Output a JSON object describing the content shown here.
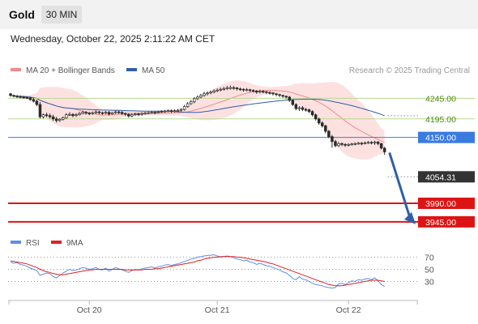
{
  "header": {
    "title": "Gold",
    "timeframe": "30 MIN",
    "datetime": "Wednesday, October 22, 2025 2:11:22 AM CET"
  },
  "legend": {
    "bb_label": "MA 20 + Bollinger Bands",
    "ma50_label": "MA 50",
    "credit": "Research © 2025 Trading Central",
    "rsi_label": "RSI",
    "rsi9_label": "9MA"
  },
  "colors": {
    "bb_band": "#fcd9d9",
    "ma20": "#f08a8a",
    "ma50": "#2f5fa8",
    "level_green": "#b9d98f",
    "level_blue": "#3a7be0",
    "level_red": "#dd1414",
    "current": "#333333",
    "rsi": "#5b8fe8",
    "rsi9": "#e02020",
    "arrow": "#2f5fa8",
    "candle": "#2b2b2b"
  },
  "chart_data": [
    {
      "type": "candlestick",
      "title": "Gold",
      "timeframe": "30 MIN",
      "ylim": [
        3927,
        4291
      ],
      "x_ticks": [
        {
          "label": "Oct 20",
          "index": 24
        },
        {
          "label": "Oct 21",
          "index": 63
        },
        {
          "label": "Oct 22",
          "index": 103
        }
      ],
      "close": [
        4252,
        4250,
        4249,
        4248,
        4247,
        4246,
        4242,
        4238,
        4230,
        4200,
        4205,
        4203,
        4200,
        4195,
        4191,
        4194,
        4198,
        4205,
        4206,
        4203,
        4205,
        4208,
        4211,
        4209,
        4208,
        4210,
        4212,
        4210,
        4209,
        4211,
        4207,
        4210,
        4212,
        4211,
        4208,
        4206,
        4202,
        4205,
        4207,
        4206,
        4208,
        4209,
        4210,
        4211,
        4210,
        4212,
        4213,
        4214,
        4215,
        4213,
        4215,
        4216,
        4218,
        4225,
        4232,
        4237,
        4244,
        4248,
        4252,
        4256,
        4258,
        4260,
        4263,
        4265,
        4267,
        4268,
        4270,
        4271,
        4270,
        4268,
        4267,
        4265,
        4266,
        4264,
        4263,
        4260,
        4262,
        4261,
        4259,
        4258,
        4256,
        4254,
        4252,
        4250,
        4248,
        4240,
        4230,
        4220,
        4222,
        4218,
        4217,
        4213,
        4205,
        4195,
        4185,
        4178,
        4165,
        4152,
        4140,
        4130,
        4135,
        4133,
        4131,
        4133,
        4134,
        4135,
        4136,
        4135,
        4137,
        4138,
        4137,
        4139,
        4135,
        4124,
        4115
      ],
      "open": [
        4256,
        4252,
        4250,
        4249,
        4248,
        4247,
        4246,
        4242,
        4238,
        4230,
        4200,
        4205,
        4203,
        4200,
        4195,
        4191,
        4194,
        4198,
        4205,
        4206,
        4203,
        4205,
        4208,
        4211,
        4209,
        4208,
        4210,
        4212,
        4210,
        4209,
        4211,
        4207,
        4210,
        4212,
        4211,
        4208,
        4206,
        4202,
        4205,
        4207,
        4206,
        4208,
        4209,
        4210,
        4211,
        4210,
        4212,
        4213,
        4214,
        4215,
        4213,
        4215,
        4216,
        4218,
        4225,
        4232,
        4237,
        4244,
        4248,
        4252,
        4256,
        4258,
        4260,
        4263,
        4265,
        4267,
        4268,
        4270,
        4271,
        4270,
        4268,
        4267,
        4265,
        4266,
        4264,
        4263,
        4260,
        4262,
        4261,
        4259,
        4258,
        4256,
        4254,
        4252,
        4250,
        4248,
        4240,
        4230,
        4220,
        4222,
        4218,
        4217,
        4213,
        4205,
        4195,
        4185,
        4178,
        4165,
        4152,
        4140,
        4130,
        4135,
        4133,
        4131,
        4133,
        4134,
        4135,
        4136,
        4135,
        4137,
        4138,
        4137,
        4139,
        4135,
        4124
      ],
      "high": [
        4258,
        4254,
        4253,
        4252,
        4251,
        4250,
        4249,
        4246,
        4242,
        4236,
        4208,
        4210,
        4208,
        4205,
        4200,
        4197,
        4201,
        4209,
        4211,
        4209,
        4209,
        4212,
        4215,
        4214,
        4212,
        4213,
        4216,
        4215,
        4213,
        4214,
        4214,
        4212,
        4215,
        4215,
        4214,
        4211,
        4209,
        4208,
        4210,
        4210,
        4211,
        4212,
        4213,
        4214,
        4214,
        4215,
        4216,
        4217,
        4218,
        4218,
        4218,
        4219,
        4221,
        4229,
        4236,
        4241,
        4248,
        4252,
        4256,
        4261,
        4262,
        4264,
        4267,
        4269,
        4271,
        4273,
        4275,
        4276,
        4275,
        4273,
        4271,
        4269,
        4270,
        4268,
        4267,
        4265,
        4266,
        4265,
        4263,
        4262,
        4260,
        4258,
        4256,
        4254,
        4252,
        4251,
        4243,
        4233,
        4226,
        4226,
        4222,
        4220,
        4216,
        4208,
        4198,
        4189,
        4181,
        4168,
        4156,
        4144,
        4139,
        4138,
        4136,
        4136,
        4137,
        4138,
        4139,
        4139,
        4140,
        4141,
        4141,
        4142,
        4141,
        4137,
        4127
      ],
      "low": [
        4249,
        4247,
        4246,
        4245,
        4244,
        4243,
        4239,
        4235,
        4226,
        4196,
        4196,
        4199,
        4196,
        4190,
        4186,
        4188,
        4191,
        4195,
        4202,
        4199,
        4200,
        4203,
        4206,
        4205,
        4204,
        4205,
        4207,
        4206,
        4205,
        4206,
        4203,
        4205,
        4207,
        4207,
        4204,
        4202,
        4198,
        4199,
        4202,
        4202,
        4203,
        4205,
        4206,
        4207,
        4206,
        4208,
        4209,
        4210,
        4211,
        4209,
        4210,
        4212,
        4213,
        4215,
        4222,
        4229,
        4233,
        4241,
        4245,
        4249,
        4252,
        4255,
        4257,
        4260,
        4262,
        4264,
        4265,
        4266,
        4266,
        4264,
        4263,
        4261,
        4262,
        4260,
        4259,
        4256,
        4257,
        4257,
        4255,
        4254,
        4252,
        4250,
        4248,
        4246,
        4244,
        4236,
        4226,
        4216,
        4214,
        4214,
        4213,
        4209,
        4201,
        4191,
        4181,
        4174,
        4160,
        4148,
        4125,
        4126,
        4127,
        4129,
        4127,
        4128,
        4130,
        4131,
        4132,
        4131,
        4133,
        4134,
        4133,
        4132,
        4131,
        4121,
        4108
      ],
      "levels": [
        {
          "label": "4245.00",
          "value": 4245,
          "kind": "resistance"
        },
        {
          "label": "4195.00",
          "value": 4195,
          "kind": "resistance"
        },
        {
          "label": "4150.00",
          "value": 4150,
          "kind": "pivot"
        },
        {
          "label": "3990.00",
          "value": 3990,
          "kind": "support"
        },
        {
          "label": "3945.00",
          "value": 3945,
          "kind": "support"
        }
      ],
      "current": {
        "label": "4054.31",
        "value": 4054.31
      },
      "forecast_arrow": {
        "from_value": 4113,
        "to_value": 3945
      },
      "indicators": [
        "MA 20 + Bollinger Bands",
        "MA 50"
      ],
      "legend_position": "top-left"
    },
    {
      "type": "line",
      "panel": "RSI",
      "ylim": [
        0,
        80
      ],
      "y_ticks": [
        {
          "label": "70",
          "value": 70
        },
        {
          "label": "50",
          "value": 50
        },
        {
          "label": "30",
          "value": 30
        }
      ],
      "series": [
        {
          "name": "RSI",
          "values": [
            62,
            60,
            61,
            58,
            57,
            55,
            52,
            50,
            48,
            40,
            42,
            44,
            43,
            38,
            36,
            40,
            44,
            47,
            50,
            48,
            49,
            51,
            53,
            52,
            50,
            51,
            53,
            50,
            49,
            52,
            47,
            50,
            53,
            51,
            49,
            47,
            45,
            48,
            50,
            49,
            51,
            52,
            53,
            54,
            52,
            54,
            55,
            57,
            58,
            56,
            58,
            59,
            61,
            63,
            65,
            67,
            68,
            70,
            71,
            72,
            73,
            73,
            74,
            72,
            70,
            71,
            72,
            71,
            69,
            67,
            66,
            64,
            65,
            62,
            61,
            58,
            60,
            58,
            56,
            55,
            53,
            51,
            49,
            46,
            44,
            40,
            35,
            33,
            38,
            34,
            33,
            30,
            27,
            25,
            24,
            23,
            21,
            20,
            19,
            20,
            26,
            27,
            25,
            28,
            31,
            30,
            33,
            32,
            34,
            35,
            33,
            36,
            31,
            25,
            22
          ]
        },
        {
          "name": "9MA",
          "values": [
            64,
            63,
            62,
            61,
            60,
            59,
            57,
            55,
            53,
            50,
            48,
            46,
            45,
            43,
            42,
            41,
            41,
            42,
            43,
            44,
            45,
            46,
            47,
            48,
            49,
            49,
            50,
            50,
            50,
            50,
            50,
            50,
            50,
            50,
            50,
            49,
            49,
            49,
            49,
            49,
            49,
            50,
            50,
            50,
            51,
            51,
            52,
            53,
            54,
            55,
            56,
            57,
            58,
            59,
            60,
            61,
            62,
            64,
            65,
            67,
            68,
            69,
            70,
            70,
            71,
            71,
            71,
            71,
            71,
            70,
            70,
            69,
            68,
            67,
            66,
            65,
            64,
            63,
            62,
            60,
            59,
            57,
            55,
            53,
            51,
            49,
            47,
            45,
            43,
            41,
            39,
            37,
            35,
            33,
            31,
            29,
            27,
            25,
            24,
            23,
            23,
            23,
            24,
            25,
            26,
            27,
            28,
            29,
            30,
            31,
            32,
            32,
            32,
            31,
            30
          ]
        }
      ],
      "legend_position": "top-left"
    }
  ]
}
